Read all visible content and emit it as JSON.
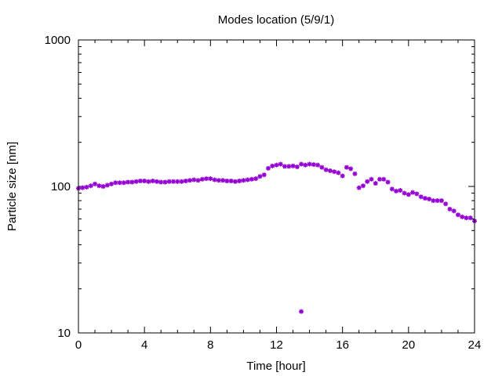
{
  "chart_data": {
    "type": "scatter",
    "title": "Modes location (5/9/1)",
    "xlabel": "Time [hour]",
    "ylabel": "Particle size [nm]",
    "xlim": [
      0,
      24
    ],
    "ylim": [
      10,
      1000
    ],
    "yscale": "log",
    "x_ticks": [
      "0",
      "4",
      "8",
      "12",
      "16",
      "20",
      "24"
    ],
    "y_ticks": [
      "10",
      "100",
      "1000"
    ],
    "grid": false,
    "legend": "none",
    "marker_color": "#9400d3",
    "series": [
      {
        "x": [
          0.0,
          0.25,
          0.5,
          0.75,
          1.0,
          1.25,
          1.5,
          1.75,
          2.0,
          2.25,
          2.5,
          2.75,
          3.0,
          3.25,
          3.5,
          3.75,
          4.0,
          4.25,
          4.5,
          4.75,
          5.0,
          5.25,
          5.5,
          5.75,
          6.0,
          6.25,
          6.5,
          6.75,
          7.0,
          7.25,
          7.5,
          7.75,
          8.0,
          8.25,
          8.5,
          8.75,
          9.0,
          9.25,
          9.5,
          9.75,
          10.0,
          10.25,
          10.5,
          10.75,
          11.0,
          11.25,
          11.5,
          11.75,
          12.0,
          12.25,
          12.5,
          12.75,
          13.0,
          13.25,
          13.5,
          13.75,
          14.0,
          14.25,
          14.5,
          14.75,
          15.0,
          15.25,
          15.5,
          15.75,
          16.0,
          16.25,
          16.5,
          16.75,
          17.0,
          17.25,
          17.5,
          17.75,
          18.0,
          18.25,
          18.5,
          18.75,
          19.0,
          19.25,
          19.5,
          19.75,
          20.0,
          20.25,
          20.5,
          20.75,
          21.0,
          21.25,
          21.5,
          21.75,
          22.0,
          22.25,
          22.5,
          22.75,
          23.0,
          23.25,
          23.5,
          23.75,
          24.0,
          13.5
        ],
        "y": [
          97,
          98,
          99,
          101,
          104,
          101,
          100,
          102,
          104,
          106,
          106,
          106,
          107,
          107,
          108,
          109,
          109,
          108,
          109,
          108,
          107,
          107,
          108,
          108,
          108,
          108,
          109,
          110,
          111,
          110,
          112,
          113,
          113,
          111,
          110,
          110,
          109,
          109,
          108,
          109,
          110,
          111,
          112,
          113,
          117,
          120,
          133,
          138,
          140,
          142,
          137,
          137,
          138,
          136,
          142,
          140,
          142,
          141,
          140,
          135,
          130,
          128,
          126,
          124,
          118,
          135,
          132,
          122,
          98,
          101,
          108,
          112,
          105,
          112,
          112,
          107,
          96,
          93,
          94,
          90,
          88,
          91,
          89,
          85,
          83,
          82,
          80,
          80,
          80,
          76,
          70,
          68,
          64,
          62,
          61,
          61,
          58,
          14
        ]
      }
    ]
  }
}
